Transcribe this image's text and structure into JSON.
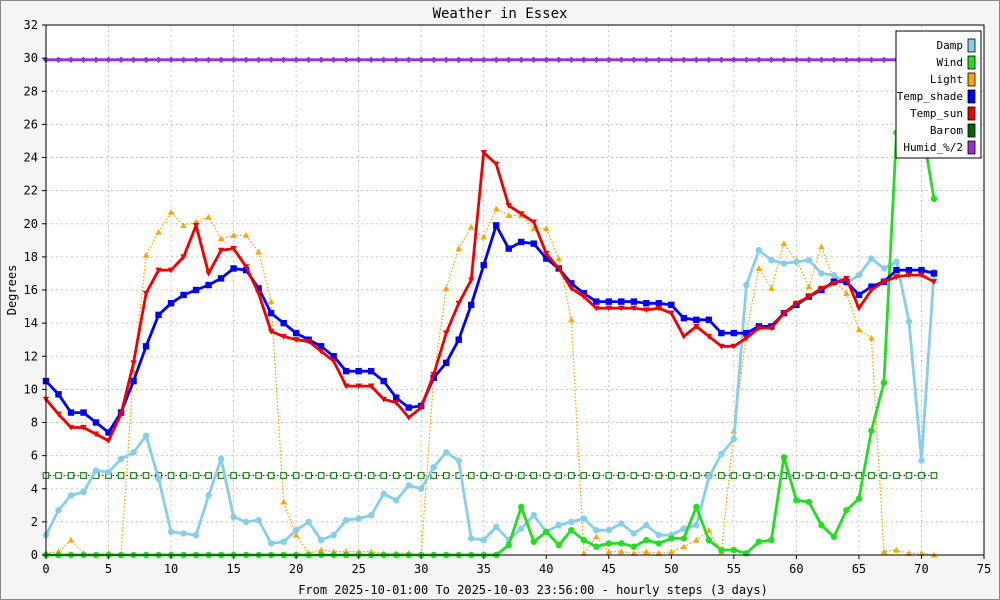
{
  "chart_data": {
    "type": "line",
    "title": "Weather in Essex",
    "xlabel": "From 2025-10-01:00 To 2025-10-03 23:56:00 - hourly steps (3 days)",
    "ylabel": "Degrees",
    "xlim": [
      0,
      75
    ],
    "ylim": [
      0,
      32
    ],
    "xticks": [
      0,
      5,
      10,
      15,
      20,
      25,
      30,
      35,
      40,
      45,
      50,
      55,
      60,
      65,
      70,
      75
    ],
    "yticks": [
      0,
      2,
      4,
      6,
      8,
      10,
      12,
      14,
      16,
      18,
      20,
      22,
      24,
      26,
      28,
      30,
      32
    ],
    "grid": true,
    "legend_position": "top-right",
    "series": [
      {
        "name": "Damp",
        "color": "#87ceeb",
        "style": "solid",
        "marker": "circle",
        "values": [
          1.2,
          2.7,
          3.6,
          3.8,
          5.1,
          5.0,
          5.8,
          6.2,
          7.2,
          4.6,
          1.4,
          1.3,
          1.2,
          3.6,
          5.8,
          2.3,
          2.0,
          2.1,
          0.7,
          0.8,
          1.5,
          2.0,
          0.9,
          1.2,
          2.1,
          2.2,
          2.4,
          3.7,
          3.3,
          4.2,
          4.0,
          5.3,
          6.2,
          5.7,
          1.0,
          0.9,
          1.7,
          0.9,
          1.6,
          2.4,
          1.4,
          1.8,
          2.0,
          2.2,
          1.5,
          1.5,
          1.9,
          1.3,
          1.8,
          1.2,
          1.2,
          1.6,
          1.8,
          4.7,
          6.1,
          7.0,
          16.3,
          18.4,
          17.8,
          17.6,
          17.7,
          17.8,
          17.0,
          16.9,
          16.4,
          16.9,
          17.9,
          17.3,
          17.7,
          14.1,
          5.7,
          17.1
        ]
      },
      {
        "name": "Wind",
        "color": "#22dd22",
        "style": "solid",
        "marker": "circle",
        "values": [
          0,
          0,
          0,
          0,
          0,
          0,
          0,
          0,
          0,
          0,
          0,
          0,
          0,
          0,
          0,
          0,
          0,
          0,
          0,
          0,
          0,
          0,
          0,
          0,
          0,
          0,
          0,
          0,
          0,
          0,
          0,
          0,
          0,
          0,
          0,
          0,
          0,
          0.6,
          2.9,
          0.8,
          1.4,
          0.6,
          1.5,
          0.9,
          0.5,
          0.7,
          0.7,
          0.5,
          0.9,
          0.7,
          1.0,
          1.0,
          2.9,
          0.9,
          0.3,
          0.3,
          0.1,
          0.8,
          0.9,
          5.9,
          3.3,
          3.2,
          1.8,
          1.1,
          2.7,
          3.4,
          7.5,
          10.4,
          25.5,
          27.3,
          26.0,
          21.5
        ]
      },
      {
        "name": "Light",
        "color": "#ffa500",
        "style": "dotted",
        "marker": "triangle-up",
        "values": [
          0.1,
          0.2,
          0.9,
          0.1,
          0,
          0.1,
          0,
          11.1,
          18.1,
          19.5,
          20.7,
          19.9,
          20.1,
          20.4,
          19.1,
          19.3,
          19.3,
          18.3,
          15.3,
          3.2,
          1.2,
          0.1,
          0.3,
          0.2,
          0.2,
          0.2,
          0.2,
          0.1,
          0.1,
          0.1,
          0,
          10.7,
          16.1,
          18.5,
          19.8,
          19.2,
          20.9,
          20.5,
          20.5,
          19.7,
          19.7,
          17.9,
          14.2,
          0.1,
          1.1,
          0.2,
          0.2,
          0.1,
          0.2,
          0.1,
          0.2,
          0.5,
          0.9,
          1.5,
          0.2,
          7.5,
          13.4,
          17.3,
          16.1,
          18.8,
          17.8,
          16.2,
          18.6,
          16.6,
          15.8,
          13.6,
          13.1,
          0.2,
          0.3,
          0.1,
          0.1,
          0
        ]
      },
      {
        "name": "Temp_shade",
        "color": "#0000ee",
        "style": "solid",
        "marker": "square",
        "values": [
          10.5,
          9.7,
          8.6,
          8.6,
          8.0,
          7.4,
          8.6,
          10.5,
          12.6,
          14.5,
          15.2,
          15.7,
          16.0,
          16.3,
          16.7,
          17.3,
          17.2,
          16.1,
          14.6,
          14.0,
          13.4,
          13.0,
          12.6,
          12.0,
          11.1,
          11.1,
          11.1,
          10.5,
          9.5,
          8.9,
          9.0,
          10.7,
          11.6,
          13.0,
          15.1,
          17.5,
          19.9,
          18.5,
          18.9,
          18.8,
          17.9,
          17.3,
          16.4,
          15.8,
          15.3,
          15.3,
          15.3,
          15.3,
          15.2,
          15.2,
          15.1,
          14.3,
          14.2,
          14.2,
          13.4,
          13.4,
          13.4,
          13.8,
          13.8,
          14.6,
          15.1,
          15.6,
          16.0,
          16.5,
          16.5,
          15.7,
          16.2,
          16.5,
          17.2,
          17.2,
          17.2,
          17.0
        ]
      },
      {
        "name": "Temp_sun",
        "color": "#ee0000",
        "style": "solid",
        "marker": "triangle-down",
        "values": [
          9.4,
          8.5,
          7.7,
          7.7,
          7.3,
          6.9,
          8.5,
          11.6,
          15.8,
          17.2,
          17.2,
          18.0,
          19.9,
          17.0,
          18.4,
          18.5,
          17.4,
          15.8,
          13.5,
          13.2,
          13.0,
          12.9,
          12.3,
          11.7,
          10.2,
          10.2,
          10.2,
          9.4,
          9.2,
          8.3,
          8.9,
          10.9,
          13.4,
          15.2,
          16.6,
          24.3,
          23.6,
          21.1,
          20.6,
          20.1,
          18.2,
          17.3,
          16.1,
          15.6,
          14.9,
          14.9,
          14.9,
          14.9,
          14.8,
          14.9,
          14.6,
          13.2,
          13.8,
          13.2,
          12.6,
          12.6,
          13.1,
          13.7,
          13.7,
          14.6,
          15.2,
          15.6,
          16.1,
          16.4,
          16.7,
          14.9,
          16.0,
          16.5,
          16.8,
          16.9,
          16.9,
          16.5
        ]
      },
      {
        "name": "Barom",
        "color": "#006400",
        "style": "dotted",
        "marker": "open-square",
        "values": [
          4.8,
          4.8,
          4.8,
          4.8,
          4.8,
          4.8,
          4.8,
          4.8,
          4.8,
          4.8,
          4.8,
          4.8,
          4.8,
          4.8,
          4.8,
          4.8,
          4.8,
          4.8,
          4.8,
          4.8,
          4.8,
          4.8,
          4.8,
          4.8,
          4.8,
          4.8,
          4.8,
          4.8,
          4.8,
          4.8,
          4.8,
          4.8,
          4.8,
          4.8,
          4.8,
          4.8,
          4.8,
          4.8,
          4.8,
          4.8,
          4.8,
          4.8,
          4.8,
          4.8,
          4.8,
          4.8,
          4.8,
          4.8,
          4.8,
          4.8,
          4.8,
          4.8,
          4.8,
          4.8,
          4.8,
          4.8,
          4.8,
          4.8,
          4.8,
          4.8,
          4.8,
          4.8,
          4.8,
          4.8,
          4.8,
          4.8,
          4.8,
          4.8,
          4.8,
          4.8,
          4.8,
          4.8
        ]
      },
      {
        "name": "Humid_%/2",
        "color": "#9932cc",
        "style": "solid",
        "marker": "diamond",
        "values": [
          29.9,
          29.9,
          29.9,
          29.9,
          29.9,
          29.9,
          29.9,
          29.9,
          29.9,
          29.9,
          29.9,
          29.9,
          29.9,
          29.9,
          29.9,
          29.9,
          29.9,
          29.9,
          29.9,
          29.9,
          29.9,
          29.9,
          29.9,
          29.9,
          29.9,
          29.9,
          29.9,
          29.9,
          29.9,
          29.9,
          29.9,
          29.9,
          29.9,
          29.9,
          29.9,
          29.9,
          29.9,
          29.9,
          29.9,
          29.9,
          29.9,
          29.9,
          29.9,
          29.9,
          29.9,
          29.9,
          29.9,
          29.9,
          29.9,
          29.9,
          29.9,
          29.9,
          29.9,
          29.9,
          29.9,
          29.9,
          29.9,
          29.9,
          29.9,
          29.9,
          29.9,
          29.9,
          29.9,
          29.9,
          29.9,
          29.9,
          29.9,
          29.9,
          29.9,
          29.9,
          29.9,
          29.9
        ]
      }
    ]
  }
}
